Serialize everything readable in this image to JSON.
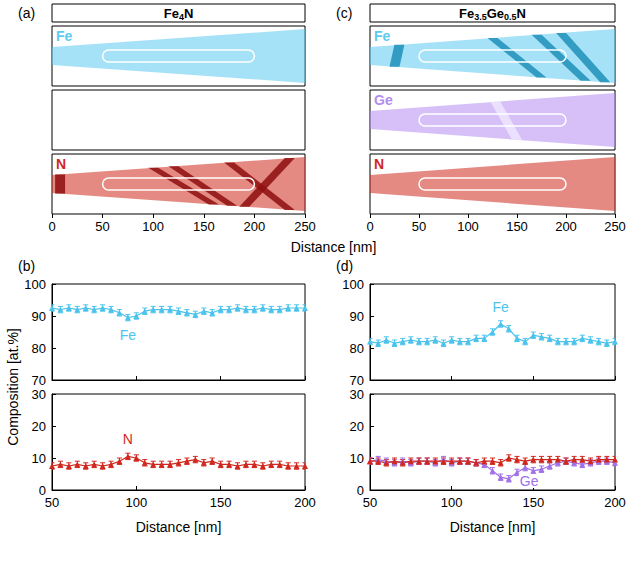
{
  "chart_data": [
    {
      "type": "reconstruction",
      "xlim": [
        0,
        250
      ],
      "xticks": [
        0,
        50,
        100,
        150,
        200,
        250
      ],
      "xlabel": "Distance [nm]",
      "panels": [
        {
          "label": "(a)",
          "title": "Fe4N",
          "rows": [
            {
              "name": "Fe",
              "color": "#5ccbf0"
            },
            null,
            {
              "name": "N",
              "color": "#d0281e",
              "band_color": "#8e0f0f",
              "bands": [
                [
                  8,
                  8
                ],
                [
                  100,
                  160
                ],
                [
                  120,
                  178
                ],
                [
                  175,
                  235
                ],
                [
                  235,
                  190
                ]
              ]
            }
          ]
        },
        {
          "label": "(c)",
          "title": "Fe3.5Ge0.5N",
          "rows": [
            {
              "name": "Fe",
              "color": "#5ccbf0",
              "band_color": "#1f8fb8",
              "bands": [
                [
                  30,
                  25
                ],
                [
                  125,
                  175
                ],
                [
                  170,
                  220
                ],
                [
                  195,
                  240
                ]
              ]
            },
            {
              "name": "Ge",
              "color": "#b48cf0",
              "band_color": "#efe6ff",
              "bands": [
                [
                  128,
                  150
                ]
              ]
            },
            {
              "name": "N",
              "color": "#d0281e"
            }
          ]
        }
      ]
    },
    {
      "type": "line",
      "label": "(b)",
      "marker": "triangle",
      "x": [
        50,
        55,
        60,
        65,
        70,
        75,
        80,
        85,
        90,
        95,
        100,
        105,
        110,
        115,
        120,
        125,
        130,
        135,
        140,
        145,
        150,
        155,
        160,
        165,
        170,
        175,
        180,
        185,
        190,
        195,
        200
      ],
      "xlim": [
        50,
        200
      ],
      "xticks": [
        50,
        100,
        150,
        200
      ],
      "xlabel": "Distance [nm]",
      "ylabel": "Composition [at.%]",
      "series": [
        {
          "name": "Fe",
          "color": "#4cc3ec",
          "ylim": [
            70,
            100
          ],
          "yticks": [
            70,
            80,
            90,
            100
          ],
          "errors": 1,
          "values": [
            92.5,
            92,
            92.5,
            92,
            92.5,
            92,
            92.5,
            92,
            91,
            89.5,
            90,
            91.5,
            92,
            92,
            92,
            91.5,
            91,
            90.5,
            91.5,
            91,
            92,
            92,
            92.5,
            92,
            92,
            92.5,
            92,
            92,
            92.5,
            92.5,
            92.5
          ]
        },
        {
          "name": "N",
          "color": "#d0281e",
          "ylim": [
            0,
            30
          ],
          "yticks": [
            0,
            10,
            20,
            30
          ],
          "errors": 1,
          "values": [
            7.5,
            8,
            7.5,
            8,
            7.5,
            8,
            7.5,
            8,
            9,
            10.5,
            10,
            8.5,
            8,
            8,
            8,
            8.5,
            9,
            9.5,
            8.5,
            9,
            8,
            8,
            7.5,
            8,
            8,
            7.5,
            8,
            8,
            7.5,
            7.5,
            7.5
          ]
        }
      ]
    },
    {
      "type": "line",
      "label": "(d)",
      "marker": "triangle",
      "x": [
        50,
        55,
        60,
        65,
        70,
        75,
        80,
        85,
        90,
        95,
        100,
        105,
        110,
        115,
        120,
        125,
        130,
        135,
        140,
        145,
        150,
        155,
        160,
        165,
        170,
        175,
        180,
        185,
        190,
        195,
        200
      ],
      "xlim": [
        50,
        200
      ],
      "xticks": [
        50,
        100,
        150,
        200
      ],
      "xlabel": "Distance [nm]",
      "series": [
        {
          "name": "Fe",
          "color": "#4cc3ec",
          "ylim": [
            70,
            100
          ],
          "yticks": [
            70,
            80,
            90,
            100
          ],
          "errors": 1,
          "values": [
            82,
            81.5,
            82.5,
            81.5,
            82,
            82.5,
            82,
            82,
            82.5,
            81.5,
            82.5,
            82,
            82,
            83,
            83,
            85,
            87.5,
            86,
            83,
            82,
            84,
            83.5,
            83,
            82,
            82,
            82,
            83,
            82.5,
            82,
            81.5,
            82
          ]
        },
        {
          "name": "Ge",
          "color": "#a070e8",
          "ylim": [
            0,
            30
          ],
          "yticks": [
            0,
            10,
            20,
            30
          ],
          "errors": 1,
          "values": [
            9,
            9.5,
            9,
            8.5,
            9,
            8.5,
            9,
            9,
            8.5,
            9.5,
            8.5,
            9,
            9,
            8.5,
            8,
            6,
            4,
            3.5,
            5.5,
            7,
            6,
            6.5,
            7.5,
            8.5,
            9,
            8.5,
            8,
            8.5,
            9,
            9,
            8.5
          ]
        },
        {
          "color": "#d0281e",
          "ylim": [
            0,
            30
          ],
          "yticks": [
            0,
            10,
            20,
            30
          ],
          "errors": 1,
          "values": [
            9,
            9,
            8.5,
            9,
            8.5,
            9,
            9,
            9,
            9,
            9,
            9,
            9,
            9,
            8.5,
            9,
            9,
            8.5,
            10,
            9.5,
            9,
            9.5,
            9.5,
            9.5,
            9.5,
            9,
            9.5,
            9.5,
            9,
            9.5,
            9.5,
            9.5
          ]
        }
      ]
    }
  ]
}
